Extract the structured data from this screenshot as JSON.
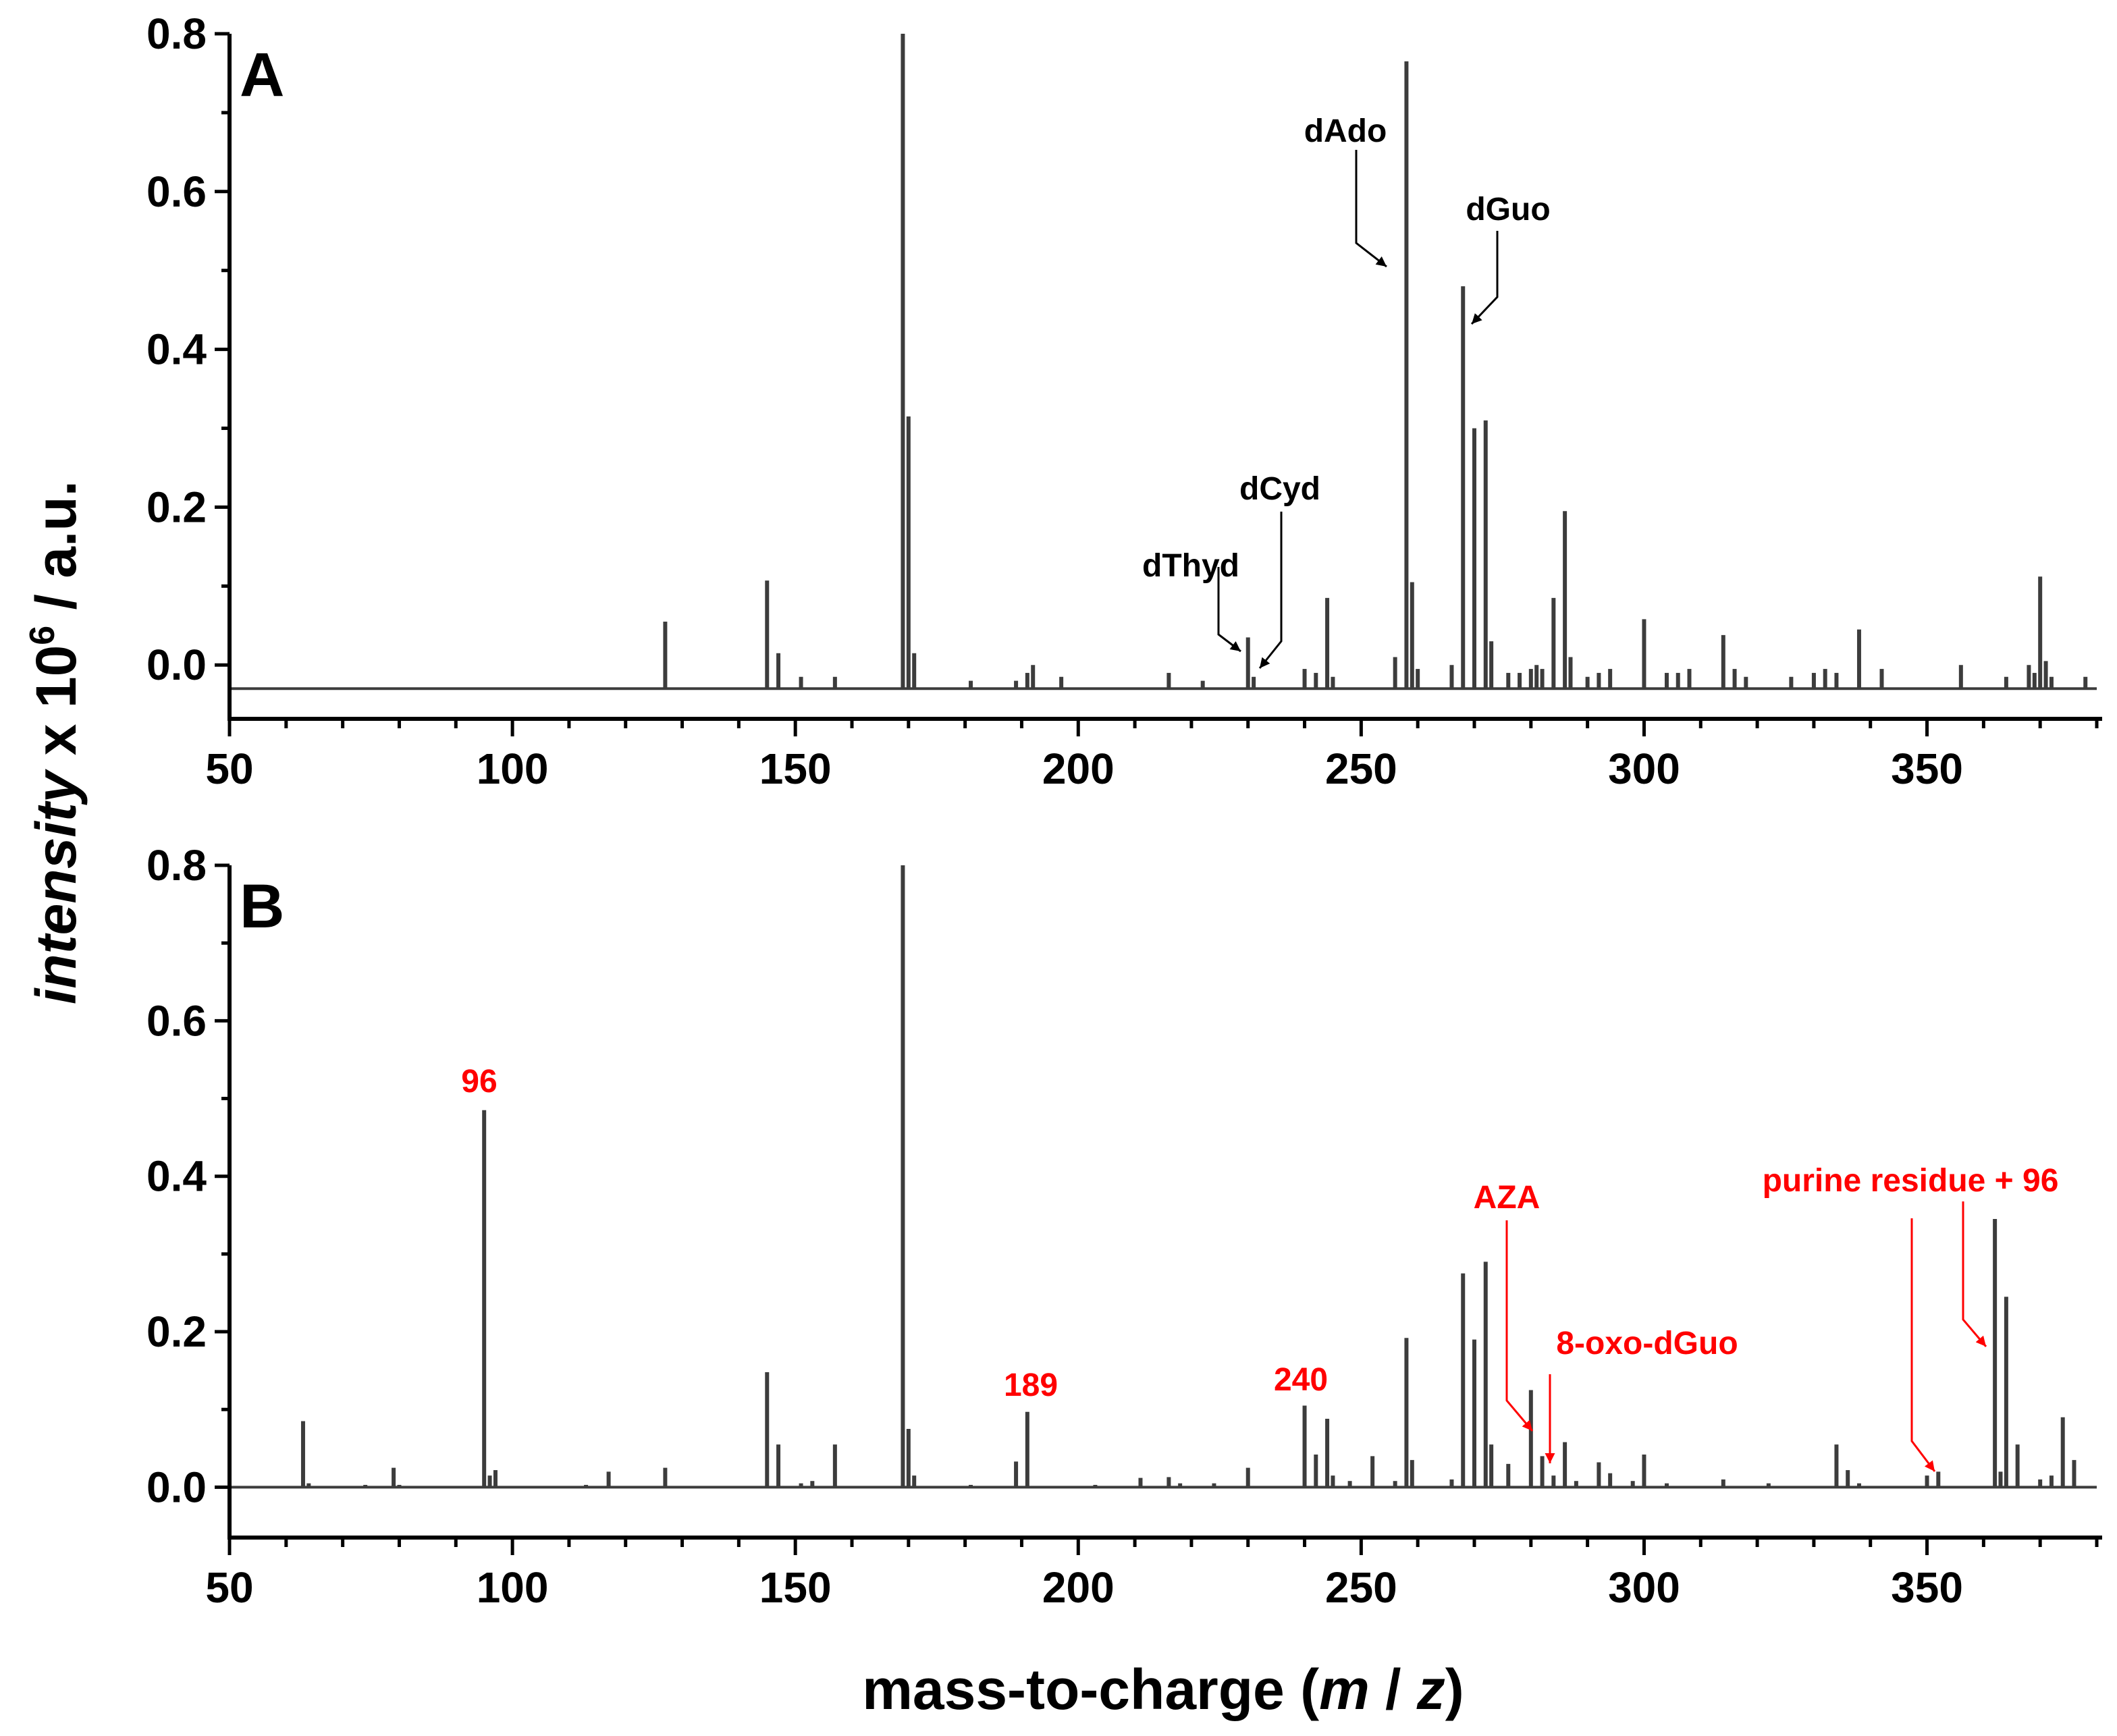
{
  "chart_data": {
    "type": "bar",
    "subtype": "mass-spectrum",
    "ylabel": {
      "italic": "intensity",
      "rest": " x 10",
      "sup": "6",
      "suffix": " / a.u."
    },
    "xlabel": {
      "prefix": "mass-to-charge (",
      "m": "m",
      "sep": " / ",
      "z": "z",
      "suffix": ")"
    },
    "xlim": [
      50,
      380
    ],
    "x_ticks": [
      50,
      100,
      150,
      200,
      250,
      300,
      350
    ],
    "x_tick_labels": [
      "50",
      "100",
      "150",
      "200",
      "250",
      "300",
      "350"
    ],
    "x_minor_step": 10,
    "panels": [
      {
        "label": "A",
        "ylim": [
          -0.04,
          0.8
        ],
        "baseline": -0.03,
        "y_ticks": [
          0.0,
          0.2,
          0.4,
          0.6,
          0.8
        ],
        "y_tick_labels": [
          "0.0",
          "0.2",
          "0.4",
          "0.6",
          "0.8"
        ],
        "peaks": [
          [
            127,
            0.055
          ],
          [
            145,
            0.107
          ],
          [
            147,
            0.015
          ],
          [
            151,
            -0.015
          ],
          [
            157,
            -0.015
          ],
          [
            169,
            0.8
          ],
          [
            170,
            0.315
          ],
          [
            171,
            0.015
          ],
          [
            181,
            -0.02
          ],
          [
            189,
            -0.02
          ],
          [
            191,
            -0.01
          ],
          [
            192,
            0.0
          ],
          [
            197,
            -0.015
          ],
          [
            216,
            -0.01
          ],
          [
            222,
            -0.02
          ],
          [
            230,
            0.035
          ],
          [
            231,
            -0.015
          ],
          [
            240,
            -0.005
          ],
          [
            242,
            -0.01
          ],
          [
            244,
            0.085
          ],
          [
            245,
            -0.015
          ],
          [
            256,
            0.01
          ],
          [
            258,
            0.765
          ],
          [
            259,
            0.105
          ],
          [
            260,
            -0.005
          ],
          [
            266,
            0.0
          ],
          [
            268,
            0.48
          ],
          [
            270,
            0.3
          ],
          [
            272,
            0.31
          ],
          [
            273,
            0.03
          ],
          [
            276,
            -0.01
          ],
          [
            278,
            -0.01
          ],
          [
            280,
            -0.005
          ],
          [
            281,
            0.0
          ],
          [
            282,
            -0.005
          ],
          [
            284,
            0.085
          ],
          [
            286,
            0.195
          ],
          [
            287,
            0.01
          ],
          [
            290,
            -0.015
          ],
          [
            292,
            -0.01
          ],
          [
            294,
            -0.005
          ],
          [
            300,
            0.058
          ],
          [
            304,
            -0.01
          ],
          [
            306,
            -0.01
          ],
          [
            308,
            -0.005
          ],
          [
            314,
            0.038
          ],
          [
            316,
            -0.005
          ],
          [
            318,
            -0.015
          ],
          [
            326,
            -0.015
          ],
          [
            330,
            -0.01
          ],
          [
            332,
            -0.005
          ],
          [
            334,
            -0.01
          ],
          [
            338,
            0.045
          ],
          [
            342,
            -0.005
          ],
          [
            356,
            0.0
          ],
          [
            364,
            -0.015
          ],
          [
            368,
            0.0
          ],
          [
            369,
            -0.01
          ],
          [
            370,
            0.112
          ],
          [
            371,
            0.005
          ],
          [
            372,
            -0.015
          ],
          [
            378,
            -0.015
          ]
        ],
        "annotations": [
          {
            "text": "dAdo",
            "target_x": 257,
            "target_y": 0.505
          },
          {
            "text": "dGuo",
            "target_x": 270,
            "target_y": 0.435
          },
          {
            "text": "dCyd",
            "target_x": 231,
            "target_y": -0.005
          },
          {
            "text": "dThyd",
            "target_x": 229,
            "target_y": 0.02
          }
        ]
      },
      {
        "label": "B",
        "ylim": [
          -0.05,
          0.8
        ],
        "baseline": 0.0,
        "y_ticks": [
          0.0,
          0.2,
          0.4,
          0.6,
          0.8
        ],
        "y_tick_labels": [
          "0.0",
          "0.2",
          "0.4",
          "0.6",
          "0.8"
        ],
        "peaks": [
          [
            63,
            0.085
          ],
          [
            64,
            0.005
          ],
          [
            74,
            0.003
          ],
          [
            79,
            0.025
          ],
          [
            80,
            0.003
          ],
          [
            95,
            0.485
          ],
          [
            96,
            0.015
          ],
          [
            97,
            0.022
          ],
          [
            113,
            0.003
          ],
          [
            117,
            0.02
          ],
          [
            127,
            0.025
          ],
          [
            145,
            0.148
          ],
          [
            147,
            0.055
          ],
          [
            151,
            0.005
          ],
          [
            153,
            0.008
          ],
          [
            157,
            0.055
          ],
          [
            169,
            0.8
          ],
          [
            170,
            0.075
          ],
          [
            171,
            0.015
          ],
          [
            181,
            0.003
          ],
          [
            189,
            0.033
          ],
          [
            191,
            0.097
          ],
          [
            203,
            0.003
          ],
          [
            211,
            0.012
          ],
          [
            216,
            0.013
          ],
          [
            218,
            0.005
          ],
          [
            224,
            0.005
          ],
          [
            230,
            0.025
          ],
          [
            240,
            0.105
          ],
          [
            242,
            0.042
          ],
          [
            244,
            0.088
          ],
          [
            245,
            0.015
          ],
          [
            248,
            0.008
          ],
          [
            252,
            0.04
          ],
          [
            256,
            0.008
          ],
          [
            258,
            0.192
          ],
          [
            259,
            0.035
          ],
          [
            266,
            0.01
          ],
          [
            268,
            0.275
          ],
          [
            270,
            0.19
          ],
          [
            272,
            0.29
          ],
          [
            273,
            0.055
          ],
          [
            276,
            0.03
          ],
          [
            280,
            0.125
          ],
          [
            282,
            0.04
          ],
          [
            284,
            0.015
          ],
          [
            286,
            0.058
          ],
          [
            288,
            0.008
          ],
          [
            292,
            0.032
          ],
          [
            294,
            0.018
          ],
          [
            298,
            0.008
          ],
          [
            300,
            0.042
          ],
          [
            304,
            0.005
          ],
          [
            314,
            0.01
          ],
          [
            322,
            0.005
          ],
          [
            334,
            0.055
          ],
          [
            336,
            0.022
          ],
          [
            338,
            0.005
          ],
          [
            350,
            0.015
          ],
          [
            352,
            0.02
          ],
          [
            362,
            0.345
          ],
          [
            363,
            0.02
          ],
          [
            364,
            0.245
          ],
          [
            366,
            0.055
          ],
          [
            370,
            0.01
          ],
          [
            372,
            0.015
          ],
          [
            374,
            0.09
          ],
          [
            376,
            0.035
          ]
        ],
        "annotations": [
          {
            "text": "96",
            "target_x": 95,
            "target_y": 0.5
          },
          {
            "text": "189",
            "target_x": 191,
            "target_y": 0.12
          },
          {
            "text": "240",
            "target_x": 240,
            "target_y": 0.125
          },
          {
            "text": "AZA",
            "target_x": 280,
            "target_y": 0.085
          },
          {
            "text": "8-oxo-dGuo",
            "target_x": 283,
            "target_y": 0.04
          },
          {
            "text": "purine residue + 96",
            "target_x": 361,
            "target_y": 0.185
          },
          {
            "text": "purine residue + 96",
            "target_x": 352,
            "target_y": 0.03
          }
        ]
      }
    ]
  },
  "colors": {
    "trace": "#3c3c3c",
    "axis": "#000000",
    "highlight": "#ff0000",
    "background": "#ffffff"
  }
}
